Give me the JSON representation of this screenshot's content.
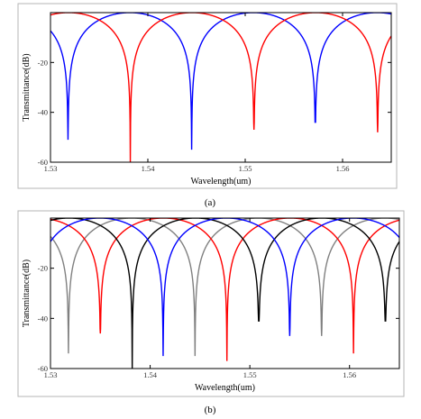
{
  "chart_data": [
    {
      "panel": "a",
      "type": "line",
      "caption": "(a)",
      "xlabel": "Wavelength(um)",
      "ylabel": "Transmittance(dB)",
      "xlim": [
        1.53,
        1.565
      ],
      "ylim": [
        -60,
        0
      ],
      "xticks": [
        "1.53",
        "1.54",
        "1.55",
        "1.56"
      ],
      "yticks": [
        "-20",
        "-40",
        "-60"
      ],
      "grid": false,
      "legend": false,
      "series": [
        {
          "color": "#0000ff",
          "notch_centers": [
            1.5318,
            1.5445,
            1.5572
          ],
          "notch_depths": [
            -51,
            -55,
            -44
          ],
          "period": 0.0127
        },
        {
          "color": "#ff0000",
          "notch_centers": [
            1.5382,
            1.5509,
            1.5636
          ],
          "notch_depths": [
            -60,
            -47,
            -48
          ],
          "period": 0.0127
        }
      ]
    },
    {
      "panel": "b",
      "type": "line",
      "caption": "(b)",
      "xlabel": "Wavelength(um)",
      "ylabel": "Transmittance(dB)",
      "xlim": [
        1.53,
        1.565
      ],
      "ylim": [
        -60,
        0
      ],
      "xticks": [
        "1.53",
        "1.54",
        "1.55",
        "1.56"
      ],
      "yticks": [
        "-20",
        "-40",
        "-60"
      ],
      "grid": false,
      "legend": false,
      "series": [
        {
          "color": "#808080",
          "notch_centers": [
            1.5318,
            1.5445,
            1.5572
          ],
          "notch_depths": [
            -54,
            -55,
            -47
          ],
          "period": 0.0127
        },
        {
          "color": "#ff0000",
          "notch_centers": [
            1.535,
            1.5477,
            1.5604
          ],
          "notch_depths": [
            -46,
            -57,
            -54
          ],
          "period": 0.0127
        },
        {
          "color": "#000000",
          "notch_centers": [
            1.5382,
            1.5509,
            1.5636
          ],
          "notch_depths": [
            -60,
            -41,
            -41
          ],
          "period": 0.0127
        },
        {
          "color": "#0000ff",
          "notch_centers": [
            1.5413,
            1.554
          ],
          "notch_depths": [
            -55,
            -47
          ],
          "period": 0.0127
        }
      ]
    }
  ]
}
